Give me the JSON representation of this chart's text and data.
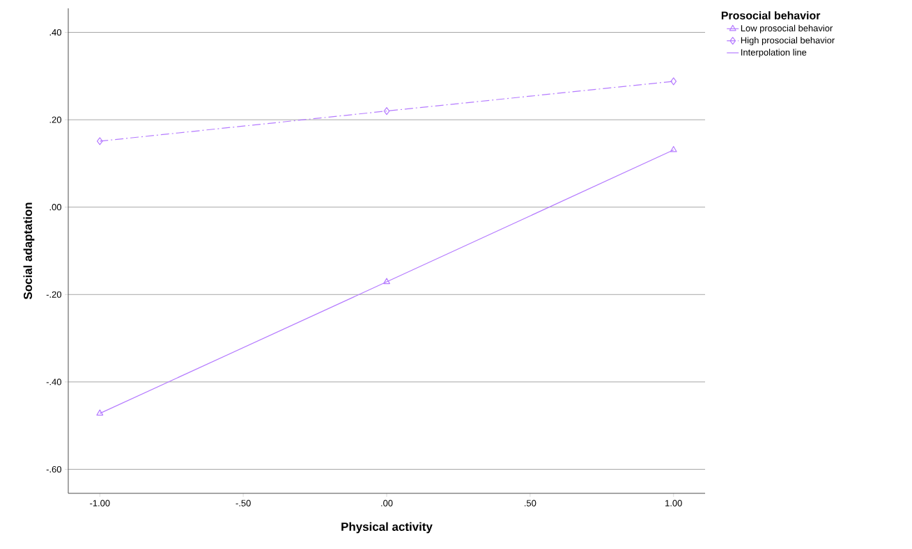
{
  "chart_data": {
    "type": "line",
    "xlabel": "Physical activity",
    "ylabel": "Social adaptation",
    "legend_title": "Prosocial behavior",
    "x": [
      -1,
      0,
      1
    ],
    "series": [
      {
        "name": "Low prosocial behavior",
        "color": "#b57bff",
        "values": [
          -0.472,
          -0.171,
          0.131
        ],
        "marker": "triangle",
        "line_style": "solid"
      },
      {
        "name": "High prosocial behavior",
        "color": "#b57bff",
        "values": [
          0.151,
          0.22,
          0.288
        ],
        "marker": "diamond",
        "line_style": "dashed"
      }
    ],
    "annotations": [
      "Interpolation line"
    ],
    "xlim": [
      -1.11,
      1.11
    ],
    "ylim": [
      -0.655,
      0.455
    ],
    "xticks": [
      {
        "value": -1,
        "label": "-1.00"
      },
      {
        "value": -0.5,
        "label": "-.50"
      },
      {
        "value": 0,
        "label": ".00"
      },
      {
        "value": 0.5,
        "label": ".50"
      },
      {
        "value": 1,
        "label": "1.00"
      }
    ],
    "yticks": [
      {
        "value": -0.6,
        "label": "-.60"
      },
      {
        "value": -0.4,
        "label": "-.40"
      },
      {
        "value": -0.2,
        "label": "-.20"
      },
      {
        "value": 0,
        "label": ".00"
      },
      {
        "value": 0.2,
        "label": ".20"
      },
      {
        "value": 0.4,
        "label": ".40"
      }
    ],
    "grid": "y",
    "legend": "top right"
  }
}
